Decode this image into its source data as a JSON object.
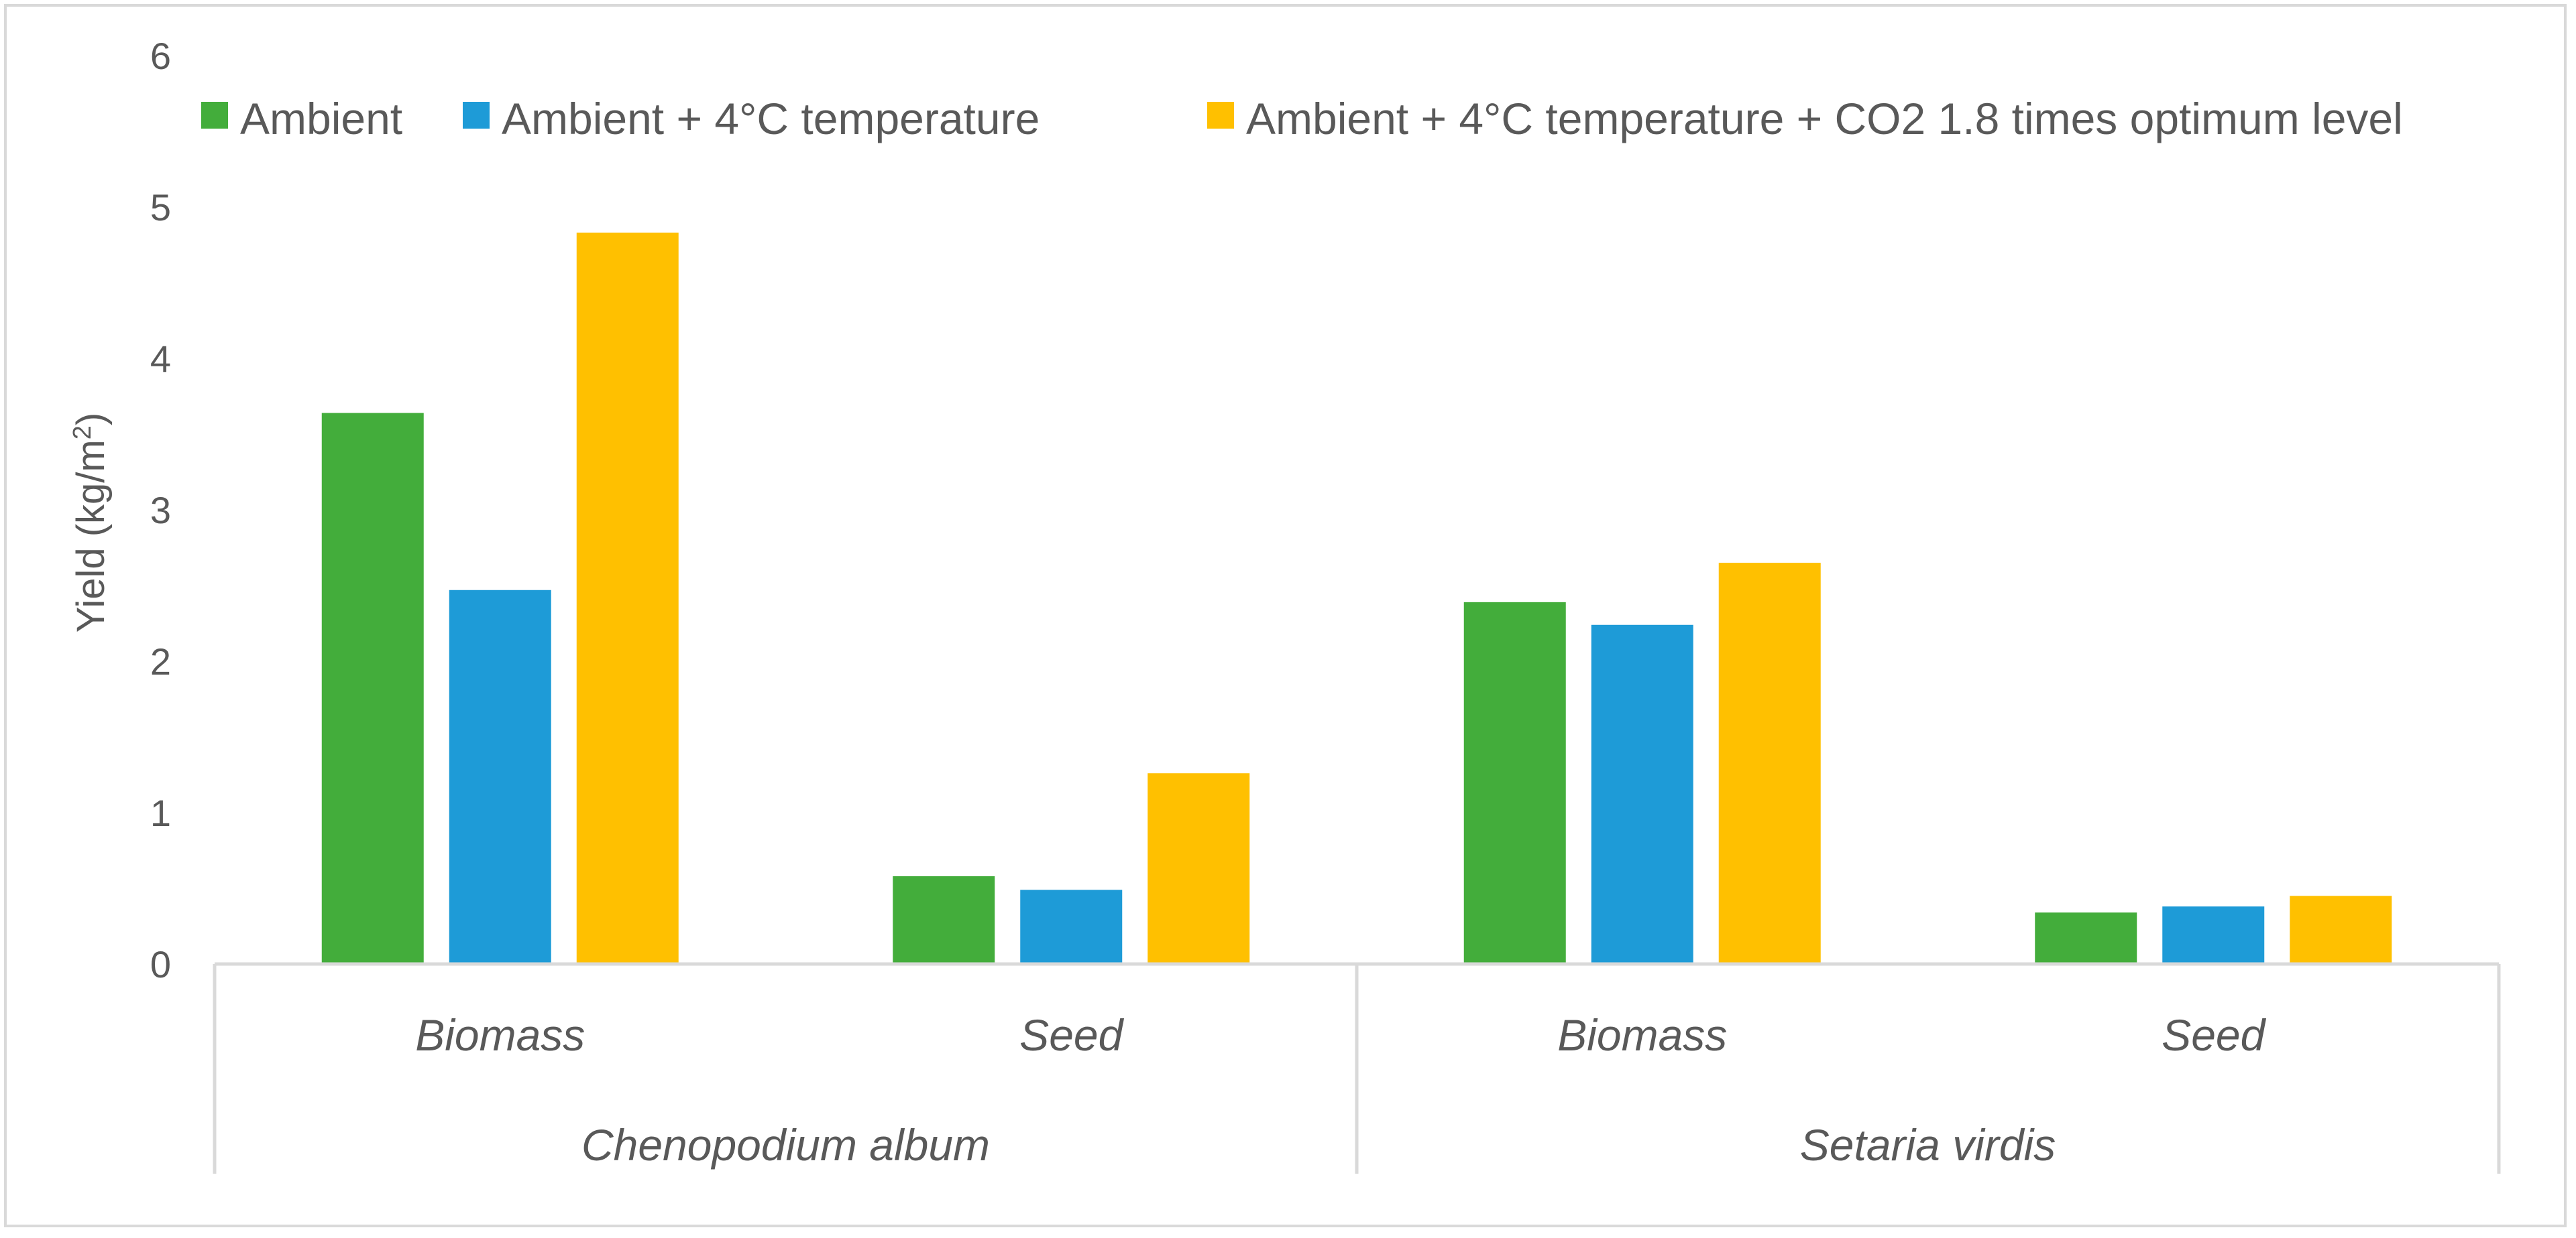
{
  "chart_data": {
    "type": "bar",
    "title": "",
    "ylabel_main": "Yield (kg/m",
    "ylabel_sup": "2",
    "ylabel_close": ")",
    "xlabel": "",
    "ylim": [
      0,
      6
    ],
    "yticks": [
      "0",
      "1",
      "2",
      "3",
      "4",
      "5",
      "6"
    ],
    "groups": [
      {
        "label": "Chenopodium album",
        "categories": [
          "Biomass",
          "Seed"
        ]
      },
      {
        "label": "Setaria virdis",
        "categories": [
          "Biomass",
          "Seed"
        ]
      }
    ],
    "categories": [
      "Biomass",
      "Seed",
      "Biomass",
      "Seed"
    ],
    "series": [
      {
        "name": "Ambient",
        "color": "#43ad3b",
        "values": [
          3.64,
          0.58,
          2.39,
          0.34
        ]
      },
      {
        "name": "Ambient + 4°C temperature",
        "color": "#1e9bd7",
        "values": [
          2.47,
          0.49,
          2.24,
          0.38
        ]
      },
      {
        "name": "Ambient + 4°C temperature + CO2 1.8 times optimum level",
        "color": "#ffc000",
        "values": [
          4.83,
          1.26,
          2.65,
          0.45
        ]
      }
    ],
    "legend_position": "top",
    "grid": false
  }
}
